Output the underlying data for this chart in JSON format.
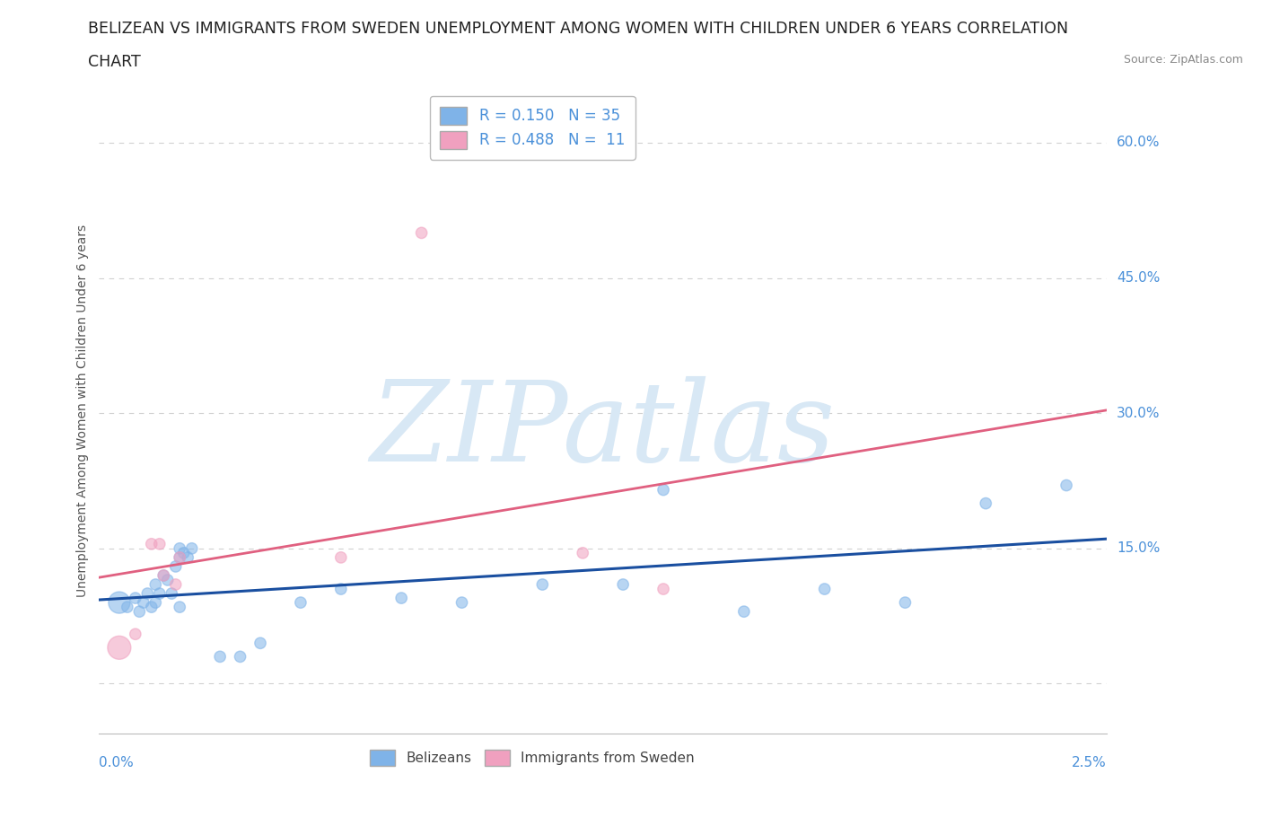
{
  "title_line1": "BELIZEAN VS IMMIGRANTS FROM SWEDEN UNEMPLOYMENT AMONG WOMEN WITH CHILDREN UNDER 6 YEARS CORRELATION",
  "title_line2": "CHART",
  "source": "Source: ZipAtlas.com",
  "xlabel_bottom_left": "0.0%",
  "xlabel_bottom_right": "2.5%",
  "ylabel": "Unemployment Among Women with Children Under 6 years",
  "yticks": [
    0.0,
    0.15,
    0.3,
    0.45,
    0.6
  ],
  "ytick_labels": [
    "",
    "15.0%",
    "30.0%",
    "45.0%",
    "60.0%"
  ],
  "xlim": [
    0.0,
    0.025
  ],
  "ylim": [
    -0.055,
    0.66
  ],
  "belizean_color": "#7fb3e8",
  "sweden_color": "#f0a0bf",
  "trendline_belizean_color": "#1a4fa0",
  "trendline_sweden_color": "#e06080",
  "legend_R_belizean": "R = 0.150   N = 35",
  "legend_R_sweden": "R = 0.488   N =  11",
  "legend_label_belizean": "Belizeans",
  "legend_label_sweden": "Immigrants from Sweden",
  "belizean_x": [
    0.0005,
    0.0007,
    0.0009,
    0.001,
    0.0011,
    0.0012,
    0.0013,
    0.0014,
    0.0014,
    0.0015,
    0.0016,
    0.0017,
    0.0018,
    0.0019,
    0.002,
    0.002,
    0.002,
    0.0021,
    0.0022,
    0.0023,
    0.003,
    0.0035,
    0.004,
    0.005,
    0.006,
    0.0075,
    0.009,
    0.011,
    0.013,
    0.014,
    0.016,
    0.018,
    0.02,
    0.022,
    0.024
  ],
  "belizean_y": [
    0.09,
    0.085,
    0.095,
    0.08,
    0.09,
    0.1,
    0.085,
    0.09,
    0.11,
    0.1,
    0.12,
    0.115,
    0.1,
    0.13,
    0.15,
    0.14,
    0.085,
    0.145,
    0.14,
    0.15,
    0.03,
    0.03,
    0.045,
    0.09,
    0.105,
    0.095,
    0.09,
    0.11,
    0.11,
    0.215,
    0.08,
    0.105,
    0.09,
    0.2,
    0.22
  ],
  "belizean_sizes": [
    300,
    80,
    80,
    80,
    80,
    80,
    80,
    80,
    80,
    80,
    80,
    80,
    80,
    80,
    80,
    80,
    80,
    80,
    80,
    80,
    80,
    80,
    80,
    80,
    80,
    80,
    80,
    80,
    80,
    80,
    80,
    80,
    80,
    80,
    80
  ],
  "sweden_x": [
    0.0005,
    0.0009,
    0.0013,
    0.0015,
    0.0016,
    0.0019,
    0.002,
    0.006,
    0.008,
    0.012,
    0.014
  ],
  "sweden_y": [
    0.04,
    0.055,
    0.155,
    0.155,
    0.12,
    0.11,
    0.14,
    0.14,
    0.5,
    0.145,
    0.105
  ],
  "sweden_sizes": [
    350,
    80,
    80,
    80,
    80,
    80,
    80,
    80,
    80,
    80,
    80
  ],
  "grid_color": "#cccccc",
  "background_color": "#ffffff",
  "title_fontsize": 13,
  "tick_label_color": "#4a90d9",
  "ylabel_color": "#555555",
  "legend_text_color": "#333333",
  "legend_rn_color": "#4a90d9",
  "source_color": "#888888",
  "watermark_text": "ZIPatlas",
  "watermark_color": "#d8e8f5"
}
